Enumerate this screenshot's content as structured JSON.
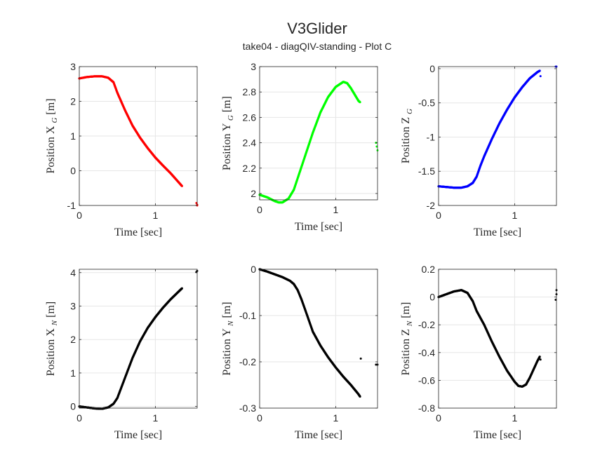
{
  "figure": {
    "title": "V3Glider",
    "subtitle": "take04 - diagQIV-standing - Plot C"
  },
  "chart_data": [
    {
      "type": "scatter",
      "color": "#ff0000",
      "xlabel": "Time [sec]",
      "ylabel": "Position X",
      "ylabel_sub": "G",
      "ylabel_unit": "[m]",
      "xlim": [
        0,
        1.55
      ],
      "ylim": [
        -1,
        3
      ],
      "xticks": [
        0,
        1
      ],
      "xtick_labels": [
        "0",
        "1"
      ],
      "yticks": [
        -1,
        0,
        1,
        2,
        3
      ],
      "ytick_labels": [
        "-1",
        "0",
        "1",
        "2",
        "3"
      ],
      "grid": true,
      "curve": [
        [
          0,
          2.66
        ],
        [
          0.1,
          2.7
        ],
        [
          0.2,
          2.72
        ],
        [
          0.3,
          2.72
        ],
        [
          0.38,
          2.68
        ],
        [
          0.45,
          2.55
        ],
        [
          0.5,
          2.25
        ],
        [
          0.6,
          1.75
        ],
        [
          0.7,
          1.3
        ],
        [
          0.8,
          0.95
        ],
        [
          0.9,
          0.65
        ],
        [
          1.0,
          0.38
        ],
        [
          1.1,
          0.15
        ],
        [
          1.2,
          -0.07
        ],
        [
          1.35,
          -0.44
        ]
      ],
      "outliers": [
        [
          1.54,
          -0.93
        ],
        [
          1.55,
          -0.98
        ],
        [
          1.55,
          -1.0
        ]
      ]
    },
    {
      "type": "scatter",
      "color": "#00ff00",
      "xlabel": "Time [sec]",
      "ylabel": "Position Y",
      "ylabel_sub": "G",
      "ylabel_unit": "[m]",
      "xlim": [
        0,
        1.55
      ],
      "ylim": [
        1.95,
        3
      ],
      "xticks": [
        0,
        1
      ],
      "xtick_labels": [
        "0",
        "1"
      ],
      "yticks": [
        2,
        2.2,
        2.4,
        2.6,
        2.8,
        3
      ],
      "ytick_labels": [
        "2",
        "2.2",
        "2.4",
        "2.6",
        "2.8",
        "3"
      ],
      "grid": true,
      "curve": [
        [
          0,
          1.99
        ],
        [
          0.1,
          1.97
        ],
        [
          0.2,
          1.94
        ],
        [
          0.25,
          1.93
        ],
        [
          0.3,
          1.93
        ],
        [
          0.38,
          1.96
        ],
        [
          0.45,
          2.03
        ],
        [
          0.5,
          2.12
        ],
        [
          0.6,
          2.3
        ],
        [
          0.7,
          2.48
        ],
        [
          0.8,
          2.64
        ],
        [
          0.9,
          2.76
        ],
        [
          1.0,
          2.84
        ],
        [
          1.1,
          2.88
        ],
        [
          1.15,
          2.87
        ],
        [
          1.2,
          2.83
        ],
        [
          1.25,
          2.78
        ],
        [
          1.3,
          2.73
        ],
        [
          1.32,
          2.72
        ]
      ],
      "outliers": [
        [
          1.53,
          2.4
        ],
        [
          1.54,
          2.37
        ],
        [
          1.55,
          2.34
        ]
      ]
    },
    {
      "type": "scatter",
      "color": "#0000ff",
      "xlabel": "Time [sec]",
      "ylabel": "Position Z",
      "ylabel_sub": "G",
      "ylabel_unit": "",
      "xlim": [
        0,
        1.55
      ],
      "ylim": [
        -2,
        0.03
      ],
      "xticks": [
        0,
        1
      ],
      "xtick_labels": [
        "0",
        "1"
      ],
      "yticks": [
        -2,
        -1.5,
        -1,
        -0.5,
        0
      ],
      "ytick_labels": [
        "-2",
        "-1.5",
        "-1",
        "-0.5",
        "0"
      ],
      "grid": true,
      "curve": [
        [
          0,
          -1.72
        ],
        [
          0.1,
          -1.73
        ],
        [
          0.2,
          -1.74
        ],
        [
          0.3,
          -1.74
        ],
        [
          0.38,
          -1.72
        ],
        [
          0.45,
          -1.67
        ],
        [
          0.5,
          -1.58
        ],
        [
          0.55,
          -1.42
        ],
        [
          0.6,
          -1.28
        ],
        [
          0.7,
          -1.03
        ],
        [
          0.8,
          -0.8
        ],
        [
          0.9,
          -0.6
        ],
        [
          1.0,
          -0.42
        ],
        [
          1.1,
          -0.27
        ],
        [
          1.2,
          -0.14
        ],
        [
          1.3,
          -0.05
        ],
        [
          1.33,
          -0.03
        ]
      ],
      "outliers": [
        [
          1.34,
          -0.11
        ],
        [
          1.54,
          0.03
        ],
        [
          1.55,
          0.03
        ]
      ]
    },
    {
      "type": "scatter",
      "color": "#000000",
      "xlabel": "Time [sec]",
      "ylabel": "Position X",
      "ylabel_sub": "N",
      "ylabel_unit": "[m]",
      "xlim": [
        0,
        1.55
      ],
      "ylim": [
        -0.05,
        4.1
      ],
      "xticks": [
        0,
        1
      ],
      "xtick_labels": [
        "0",
        "1"
      ],
      "yticks": [
        0,
        1,
        2,
        3,
        4
      ],
      "ytick_labels": [
        "0",
        "1",
        "2",
        "3",
        "4"
      ],
      "grid": true,
      "curve": [
        [
          0,
          0
        ],
        [
          0.1,
          -0.03
        ],
        [
          0.2,
          -0.06
        ],
        [
          0.3,
          -0.07
        ],
        [
          0.38,
          -0.03
        ],
        [
          0.45,
          0.08
        ],
        [
          0.5,
          0.25
        ],
        [
          0.55,
          0.55
        ],
        [
          0.6,
          0.85
        ],
        [
          0.7,
          1.45
        ],
        [
          0.8,
          1.95
        ],
        [
          0.9,
          2.35
        ],
        [
          1.0,
          2.67
        ],
        [
          1.1,
          2.95
        ],
        [
          1.2,
          3.2
        ],
        [
          1.3,
          3.42
        ],
        [
          1.35,
          3.53
        ]
      ],
      "outliers": [
        [
          1.54,
          4.02
        ],
        [
          1.55,
          4.05
        ]
      ]
    },
    {
      "type": "scatter",
      "color": "#000000",
      "xlabel": "Time [sec]",
      "ylabel": "Position Y",
      "ylabel_sub": "N",
      "ylabel_unit": "[m]",
      "xlim": [
        0,
        1.55
      ],
      "ylim": [
        -0.3,
        0
      ],
      "xticks": [
        0,
        1
      ],
      "xtick_labels": [
        "0",
        "1"
      ],
      "yticks": [
        -0.3,
        -0.2,
        -0.1,
        0
      ],
      "ytick_labels": [
        "-0.3",
        "-0.2",
        "-0.1",
        "0"
      ],
      "grid": true,
      "curve": [
        [
          0,
          0
        ],
        [
          0.1,
          -0.005
        ],
        [
          0.2,
          -0.011
        ],
        [
          0.3,
          -0.017
        ],
        [
          0.4,
          -0.025
        ],
        [
          0.45,
          -0.032
        ],
        [
          0.5,
          -0.045
        ],
        [
          0.55,
          -0.065
        ],
        [
          0.6,
          -0.088
        ],
        [
          0.7,
          -0.135
        ],
        [
          0.8,
          -0.165
        ],
        [
          0.9,
          -0.19
        ],
        [
          1.0,
          -0.212
        ],
        [
          1.1,
          -0.232
        ],
        [
          1.2,
          -0.25
        ],
        [
          1.3,
          -0.27
        ],
        [
          1.32,
          -0.275
        ]
      ],
      "outliers": [
        [
          1.33,
          -0.193
        ],
        [
          1.53,
          -0.206
        ],
        [
          1.55,
          -0.206
        ]
      ]
    },
    {
      "type": "scatter",
      "color": "#000000",
      "xlabel": "Time [sec]",
      "ylabel": "Position Z",
      "ylabel_sub": "N",
      "ylabel_unit": "[m]",
      "xlim": [
        0,
        1.55
      ],
      "ylim": [
        -0.8,
        0.2
      ],
      "xticks": [
        0,
        1
      ],
      "xtick_labels": [
        "0",
        "1"
      ],
      "yticks": [
        -0.8,
        -0.6,
        -0.4,
        -0.2,
        0,
        0.2
      ],
      "ytick_labels": [
        "-0.8",
        "-0.6",
        "-0.4",
        "-0.2",
        "0",
        "0.2"
      ],
      "grid": true,
      "curve": [
        [
          0,
          0
        ],
        [
          0.1,
          0.02
        ],
        [
          0.2,
          0.04
        ],
        [
          0.3,
          0.05
        ],
        [
          0.38,
          0.03
        ],
        [
          0.45,
          -0.03
        ],
        [
          0.5,
          -0.1
        ],
        [
          0.6,
          -0.2
        ],
        [
          0.7,
          -0.32
        ],
        [
          0.8,
          -0.43
        ],
        [
          0.9,
          -0.53
        ],
        [
          1.0,
          -0.61
        ],
        [
          1.05,
          -0.64
        ],
        [
          1.1,
          -0.645
        ],
        [
          1.15,
          -0.63
        ],
        [
          1.2,
          -0.58
        ],
        [
          1.25,
          -0.52
        ],
        [
          1.3,
          -0.46
        ],
        [
          1.33,
          -0.43
        ]
      ],
      "outliers": [
        [
          1.34,
          -0.45
        ],
        [
          1.54,
          -0.02
        ],
        [
          1.55,
          0.02
        ],
        [
          1.55,
          0.05
        ]
      ]
    }
  ]
}
